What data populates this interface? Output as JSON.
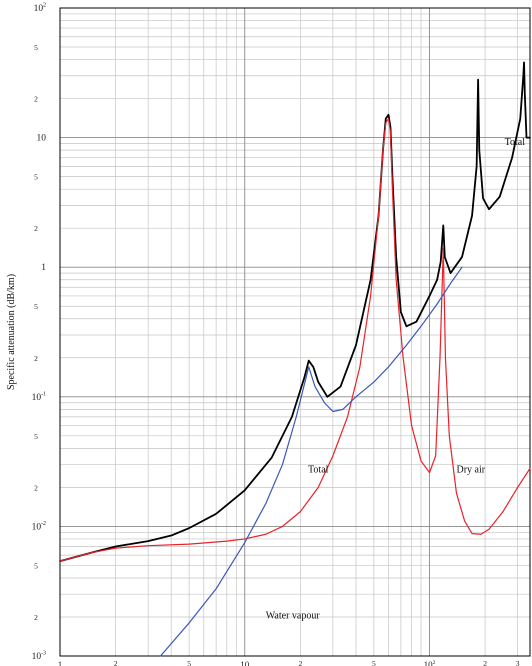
{
  "chart_data": {
    "type": "line",
    "title": "",
    "xlabel": "",
    "ylabel": "Specific attenuation (dB/km)",
    "xscale": "log",
    "yscale": "log",
    "xlim": [
      1,
      350
    ],
    "ylim": [
      0.001,
      100
    ],
    "grid": true,
    "x_major_ticks": [
      {
        "value": 1,
        "label": "1"
      },
      {
        "value": 10,
        "label": "10"
      },
      {
        "value": 100,
        "label": "10",
        "sup": "2"
      }
    ],
    "x_minor_labels": [
      {
        "value": 2,
        "label": "2"
      },
      {
        "value": 5,
        "label": "5"
      },
      {
        "value": 20,
        "label": "2"
      },
      {
        "value": 50,
        "label": "5"
      },
      {
        "value": 200,
        "label": "2"
      },
      {
        "value": 300,
        "label": "3"
      }
    ],
    "y_major_ticks": [
      {
        "value": 0.001,
        "label": "10",
        "sup": "-3"
      },
      {
        "value": 0.01,
        "label": "10",
        "sup": "-2"
      },
      {
        "value": 0.1,
        "label": "10",
        "sup": "-1"
      },
      {
        "value": 1,
        "label": "1"
      },
      {
        "value": 10,
        "label": "10"
      },
      {
        "value": 100,
        "label": "10",
        "sup": "2"
      }
    ],
    "y_minor_labels": [
      {
        "value": 0.002,
        "label": "2"
      },
      {
        "value": 0.005,
        "label": "5"
      },
      {
        "value": 0.02,
        "label": "2"
      },
      {
        "value": 0.05,
        "label": "5"
      },
      {
        "value": 0.2,
        "label": "2"
      },
      {
        "value": 0.5,
        "label": "5"
      },
      {
        "value": 2,
        "label": "2"
      },
      {
        "value": 5,
        "label": "5"
      },
      {
        "value": 20,
        "label": "2"
      },
      {
        "value": 50,
        "label": "5"
      }
    ],
    "series": [
      {
        "name": "Total",
        "color": "#000000",
        "points": [
          [
            1,
            0.0054
          ],
          [
            1.5,
            0.0063
          ],
          [
            2,
            0.007
          ],
          [
            3,
            0.0077
          ],
          [
            4,
            0.0085
          ],
          [
            5,
            0.0097
          ],
          [
            7,
            0.0125
          ],
          [
            10,
            0.019
          ],
          [
            14,
            0.034
          ],
          [
            18,
            0.07
          ],
          [
            21,
            0.14
          ],
          [
            22.2,
            0.19
          ],
          [
            23.5,
            0.17
          ],
          [
            25,
            0.13
          ],
          [
            28,
            0.1
          ],
          [
            33,
            0.12
          ],
          [
            40,
            0.25
          ],
          [
            48,
            0.8
          ],
          [
            53,
            2.5
          ],
          [
            56,
            8
          ],
          [
            58,
            14
          ],
          [
            60,
            15
          ],
          [
            61.5,
            12
          ],
          [
            63,
            5
          ],
          [
            66,
            1.2
          ],
          [
            70,
            0.45
          ],
          [
            75,
            0.35
          ],
          [
            85,
            0.38
          ],
          [
            100,
            0.6
          ],
          [
            110,
            0.8
          ],
          [
            115,
            1.1
          ],
          [
            118.75,
            2.1
          ],
          [
            121,
            1.2
          ],
          [
            130,
            0.9
          ],
          [
            150,
            1.2
          ],
          [
            170,
            2.5
          ],
          [
            180,
            6
          ],
          [
            183.3,
            28
          ],
          [
            186,
            8
          ],
          [
            195,
            3.4
          ],
          [
            210,
            2.8
          ],
          [
            240,
            3.5
          ],
          [
            280,
            7
          ],
          [
            310,
            14
          ],
          [
            322,
            30
          ],
          [
            325,
            38
          ],
          [
            328,
            22
          ],
          [
            335,
            10
          ],
          [
            350,
            10
          ]
        ]
      },
      {
        "name": "Dry air",
        "color": "#e8232a",
        "points": [
          [
            1,
            0.0054
          ],
          [
            1.5,
            0.0063
          ],
          [
            2,
            0.0068
          ],
          [
            3,
            0.0071
          ],
          [
            5,
            0.0073
          ],
          [
            8,
            0.0077
          ],
          [
            10,
            0.008
          ],
          [
            13,
            0.0087
          ],
          [
            16,
            0.01
          ],
          [
            20,
            0.013
          ],
          [
            25,
            0.02
          ],
          [
            30,
            0.035
          ],
          [
            36,
            0.07
          ],
          [
            42,
            0.17
          ],
          [
            48,
            0.6
          ],
          [
            53,
            2.5
          ],
          [
            56,
            8
          ],
          [
            58,
            13
          ],
          [
            60,
            14
          ],
          [
            61.5,
            11
          ],
          [
            63,
            4
          ],
          [
            66,
            0.8
          ],
          [
            72,
            0.2
          ],
          [
            80,
            0.06
          ],
          [
            90,
            0.032
          ],
          [
            100,
            0.026
          ],
          [
            108,
            0.035
          ],
          [
            114,
            0.2
          ],
          [
            118.75,
            1.4
          ],
          [
            122,
            0.2
          ],
          [
            128,
            0.05
          ],
          [
            140,
            0.018
          ],
          [
            155,
            0.011
          ],
          [
            170,
            0.0088
          ],
          [
            190,
            0.0087
          ],
          [
            210,
            0.0095
          ],
          [
            250,
            0.013
          ],
          [
            300,
            0.02
          ],
          [
            350,
            0.028
          ]
        ]
      },
      {
        "name": "Water vapour",
        "color": "#3a58b8",
        "points": [
          [
            3.5,
            0.001
          ],
          [
            5,
            0.0018
          ],
          [
            7,
            0.0033
          ],
          [
            10,
            0.0075
          ],
          [
            13,
            0.015
          ],
          [
            16,
            0.03
          ],
          [
            19,
            0.07
          ],
          [
            22.2,
            0.17
          ],
          [
            24,
            0.12
          ],
          [
            27,
            0.09
          ],
          [
            30,
            0.077
          ],
          [
            34,
            0.08
          ],
          [
            40,
            0.1
          ],
          [
            50,
            0.13
          ],
          [
            60,
            0.17
          ],
          [
            75,
            0.25
          ],
          [
            90,
            0.35
          ],
          [
            110,
            0.52
          ],
          [
            130,
            0.75
          ],
          [
            150,
            1.0
          ]
        ]
      }
    ],
    "annotations": [
      {
        "text": "Total",
        "x": 22,
        "y": 0.026
      },
      {
        "text": "Total",
        "x": 255,
        "y": 8.8
      },
      {
        "text": "Dry air",
        "x": 140,
        "y": 0.026
      },
      {
        "text": "Water vapour",
        "x": 13,
        "y": 0.00195
      }
    ]
  }
}
